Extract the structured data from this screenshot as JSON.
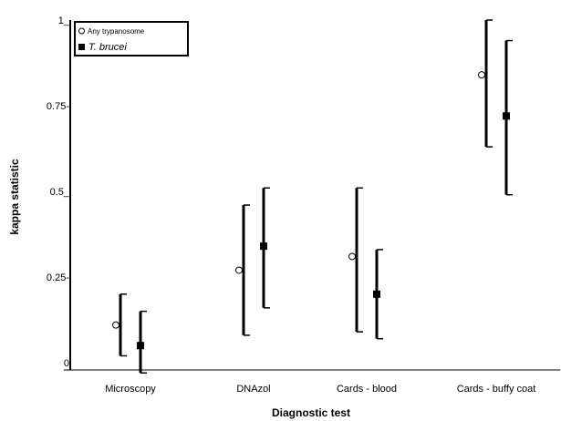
{
  "chart_data": {
    "type": "scatter",
    "title": "",
    "xlabel": "Diagnostic test",
    "ylabel": "kappa statistic",
    "categories": [
      "Microscopy",
      "DNAzol",
      "Cards - blood",
      "Cards - buffy coat"
    ],
    "ylim": [
      0,
      1
    ],
    "yticks": [
      {
        "value": 0,
        "label": "0"
      },
      {
        "value": 0.25,
        "label": "0.25-"
      },
      {
        "value": 0.5,
        "label": "0.5_"
      },
      {
        "value": 0.75,
        "label": "0.75-"
      },
      {
        "value": 1,
        "label": "1_"
      }
    ],
    "grid": false,
    "legend": "top-left",
    "series": [
      {
        "name": "Any trypanosome",
        "marker": "open-circle",
        "values": [
          0.11,
          0.27,
          0.31,
          0.84
        ],
        "lower": [
          0.02,
          0.08,
          0.09,
          0.63
        ],
        "upper": [
          0.2,
          0.46,
          0.51,
          1.0
        ]
      },
      {
        "name": "T. brucei",
        "marker": "filled-square",
        "values": [
          0.05,
          0.34,
          0.2,
          0.72
        ],
        "lower": [
          -0.03,
          0.16,
          0.07,
          0.49
        ],
        "upper": [
          0.15,
          0.51,
          0.33,
          0.94
        ]
      }
    ]
  }
}
